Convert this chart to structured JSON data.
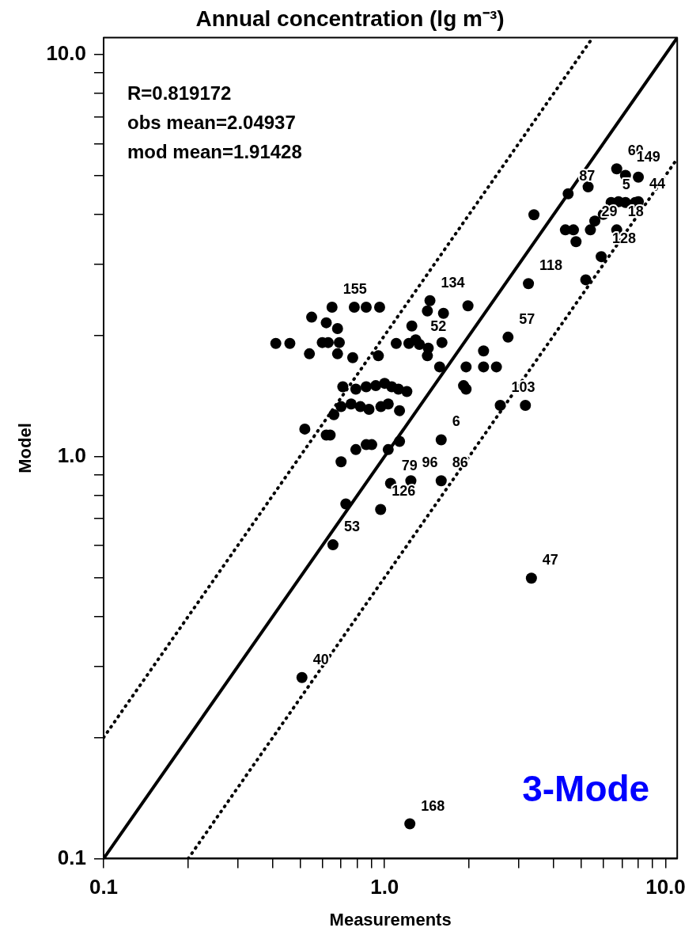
{
  "chart_data": {
    "type": "scatter",
    "title": "Annual concentration (lg m⁻³)",
    "subtitle": "3-Mode",
    "xlabel": "Measurements",
    "ylabel": "Model",
    "log": "xy",
    "grid": false,
    "legend": false,
    "xlim": [
      0.1,
      11
    ],
    "ylim": [
      0.1,
      11
    ],
    "xticks": [
      {
        "value": 0.1,
        "label": "0.1"
      },
      {
        "value": 0.2,
        "label": null
      },
      {
        "value": 0.3,
        "label": null
      },
      {
        "value": 0.4,
        "label": null
      },
      {
        "value": 0.5,
        "label": null
      },
      {
        "value": 0.6,
        "label": null
      },
      {
        "value": 0.7,
        "label": null
      },
      {
        "value": 0.8,
        "label": null
      },
      {
        "value": 0.9,
        "label": null
      },
      {
        "value": 1,
        "label": "1.0"
      },
      {
        "value": 2,
        "label": null
      },
      {
        "value": 3,
        "label": null
      },
      {
        "value": 4,
        "label": null
      },
      {
        "value": 5,
        "label": null
      },
      {
        "value": 6,
        "label": null
      },
      {
        "value": 7,
        "label": null
      },
      {
        "value": 8,
        "label": null
      },
      {
        "value": 9,
        "label": null
      },
      {
        "value": 10,
        "label": "10.0"
      }
    ],
    "yticks": [
      {
        "value": 0.1,
        "label": "0.1"
      },
      {
        "value": 0.2,
        "label": null
      },
      {
        "value": 0.3,
        "label": null
      },
      {
        "value": 0.4,
        "label": null
      },
      {
        "value": 0.5,
        "label": null
      },
      {
        "value": 0.6,
        "label": null
      },
      {
        "value": 0.7,
        "label": null
      },
      {
        "value": 0.8,
        "label": null
      },
      {
        "value": 0.9,
        "label": null
      },
      {
        "value": 1,
        "label": "1.0"
      },
      {
        "value": 2,
        "label": null
      },
      {
        "value": 3,
        "label": null
      },
      {
        "value": 4,
        "label": null
      },
      {
        "value": 5,
        "label": null
      },
      {
        "value": 6,
        "label": null
      },
      {
        "value": 7,
        "label": null
      },
      {
        "value": 8,
        "label": null
      },
      {
        "value": 9,
        "label": null
      },
      {
        "value": 10,
        "label": "10.0"
      }
    ],
    "series": [
      {
        "type": "scatter",
        "color": "#000000",
        "marker": "circle",
        "x": [
          1.23,
          0.508,
          3.33,
          0.655,
          0.728,
          0.968,
          1.05,
          1.24,
          1.59,
          0.7,
          0.79,
          0.86,
          0.9,
          1.03,
          1.13,
          1.59,
          0.52,
          0.62,
          0.64,
          0.66,
          2.58,
          3.17,
          0.71,
          0.79,
          0.86,
          0.93,
          1.0,
          1.06,
          1.12,
          1.2,
          0.7,
          0.76,
          0.82,
          0.88,
          0.97,
          1.03,
          1.13,
          1.91,
          1.95,
          1.57,
          1.95,
          2.25,
          2.5,
          1.42,
          1.43,
          1.6,
          2.25,
          2.75,
          1.29,
          1.33,
          1.1,
          1.25,
          1.42,
          1.62,
          1.45,
          1.98,
          3.25,
          3.4,
          0.78,
          0.86,
          0.96,
          0.65,
          0.55,
          0.62,
          0.68,
          0.41,
          0.46,
          0.54,
          0.6,
          0.63,
          0.68,
          0.69,
          0.77,
          0.95,
          1.22,
          4.4,
          4.7,
          4.8,
          5.4,
          5.6,
          6.0,
          6.4,
          6.8,
          7.2,
          7.8,
          6.7,
          4.5,
          5.3,
          6.7,
          7.2,
          8.0,
          5.9,
          5.2,
          8.0
        ],
        "values": [
          0.122,
          0.282,
          0.498,
          0.603,
          0.762,
          0.738,
          0.857,
          0.87,
          0.87,
          0.97,
          1.04,
          1.07,
          1.07,
          1.04,
          1.09,
          1.1,
          1.17,
          1.13,
          1.13,
          1.27,
          1.34,
          1.34,
          1.49,
          1.47,
          1.49,
          1.5,
          1.52,
          1.49,
          1.47,
          1.45,
          1.33,
          1.35,
          1.33,
          1.31,
          1.33,
          1.35,
          1.3,
          1.5,
          1.47,
          1.67,
          1.67,
          1.67,
          1.67,
          1.78,
          1.86,
          1.92,
          1.83,
          1.98,
          1.95,
          1.9,
          1.91,
          2.11,
          2.3,
          2.27,
          2.44,
          2.37,
          2.69,
          3.99,
          2.35,
          2.35,
          2.35,
          2.35,
          2.22,
          2.15,
          2.08,
          1.91,
          1.91,
          1.8,
          1.92,
          1.92,
          1.8,
          1.92,
          1.76,
          1.78,
          1.91,
          3.66,
          3.66,
          3.42,
          3.66,
          3.85,
          4.0,
          4.28,
          4.3,
          4.28,
          4.28,
          3.66,
          4.5,
          4.68,
          5.19,
          5.0,
          4.95,
          3.14,
          2.75,
          4.3
        ]
      },
      {
        "type": "line",
        "color": "#000000",
        "line_style": "solid",
        "marker": "none",
        "x": [
          0.1,
          11
        ],
        "values": [
          0.1,
          11
        ]
      },
      {
        "type": "line",
        "color": "#000000",
        "line_style": "dotted",
        "marker": "none",
        "x": [
          0.1,
          5.5
        ],
        "values": [
          0.2,
          11
        ]
      },
      {
        "type": "line",
        "color": "#000000",
        "line_style": "dotted",
        "marker": "none",
        "x": [
          0.2,
          11
        ],
        "values": [
          0.1,
          5.5
        ]
      }
    ],
    "annotations": [
      "R=0.819172",
      "obs mean=2.04937",
      "mod mean=1.91428",
      {
        "text": "168",
        "x": 1.23,
        "y": 0.122
      },
      {
        "text": "40",
        "x": 0.508,
        "y": 0.282
      },
      {
        "text": "47",
        "x": 3.33,
        "y": 0.498
      },
      {
        "text": "53",
        "x": 0.655,
        "y": 0.603
      },
      {
        "text": "79",
        "x": 1.05,
        "y": 0.857
      },
      {
        "text": "126",
        "x": 0.968,
        "y": 0.738
      },
      {
        "text": "86",
        "x": 1.59,
        "y": 0.87
      },
      {
        "text": "96",
        "x": 1.24,
        "y": 0.87
      },
      {
        "text": "6",
        "x": 1.59,
        "y": 1.1
      },
      {
        "text": "103",
        "x": 2.58,
        "y": 1.34
      },
      {
        "text": "57",
        "x": 2.75,
        "y": 1.98
      },
      {
        "text": "118",
        "x": 3.25,
        "y": 2.69
      },
      {
        "text": "128",
        "x": 5.9,
        "y": 3.14
      },
      {
        "text": "18",
        "x": 6.7,
        "y": 3.66
      },
      {
        "text": "60",
        "x": 6.7,
        "y": 5.19
      },
      {
        "text": "149",
        "x": 7.2,
        "y": 5.0
      },
      {
        "text": "87",
        "x": 4.5,
        "y": 4.5
      },
      {
        "text": "5",
        "x": 6.4,
        "y": 4.28
      },
      {
        "text": "29",
        "x": 5.4,
        "y": 3.66
      },
      {
        "text": "44",
        "x": 8.0,
        "y": 4.3
      },
      {
        "text": "155",
        "x": 0.65,
        "y": 2.35
      },
      {
        "text": "52",
        "x": 1.33,
        "y": 1.9
      },
      {
        "text": "134",
        "x": 1.45,
        "y": 2.44
      }
    ]
  }
}
